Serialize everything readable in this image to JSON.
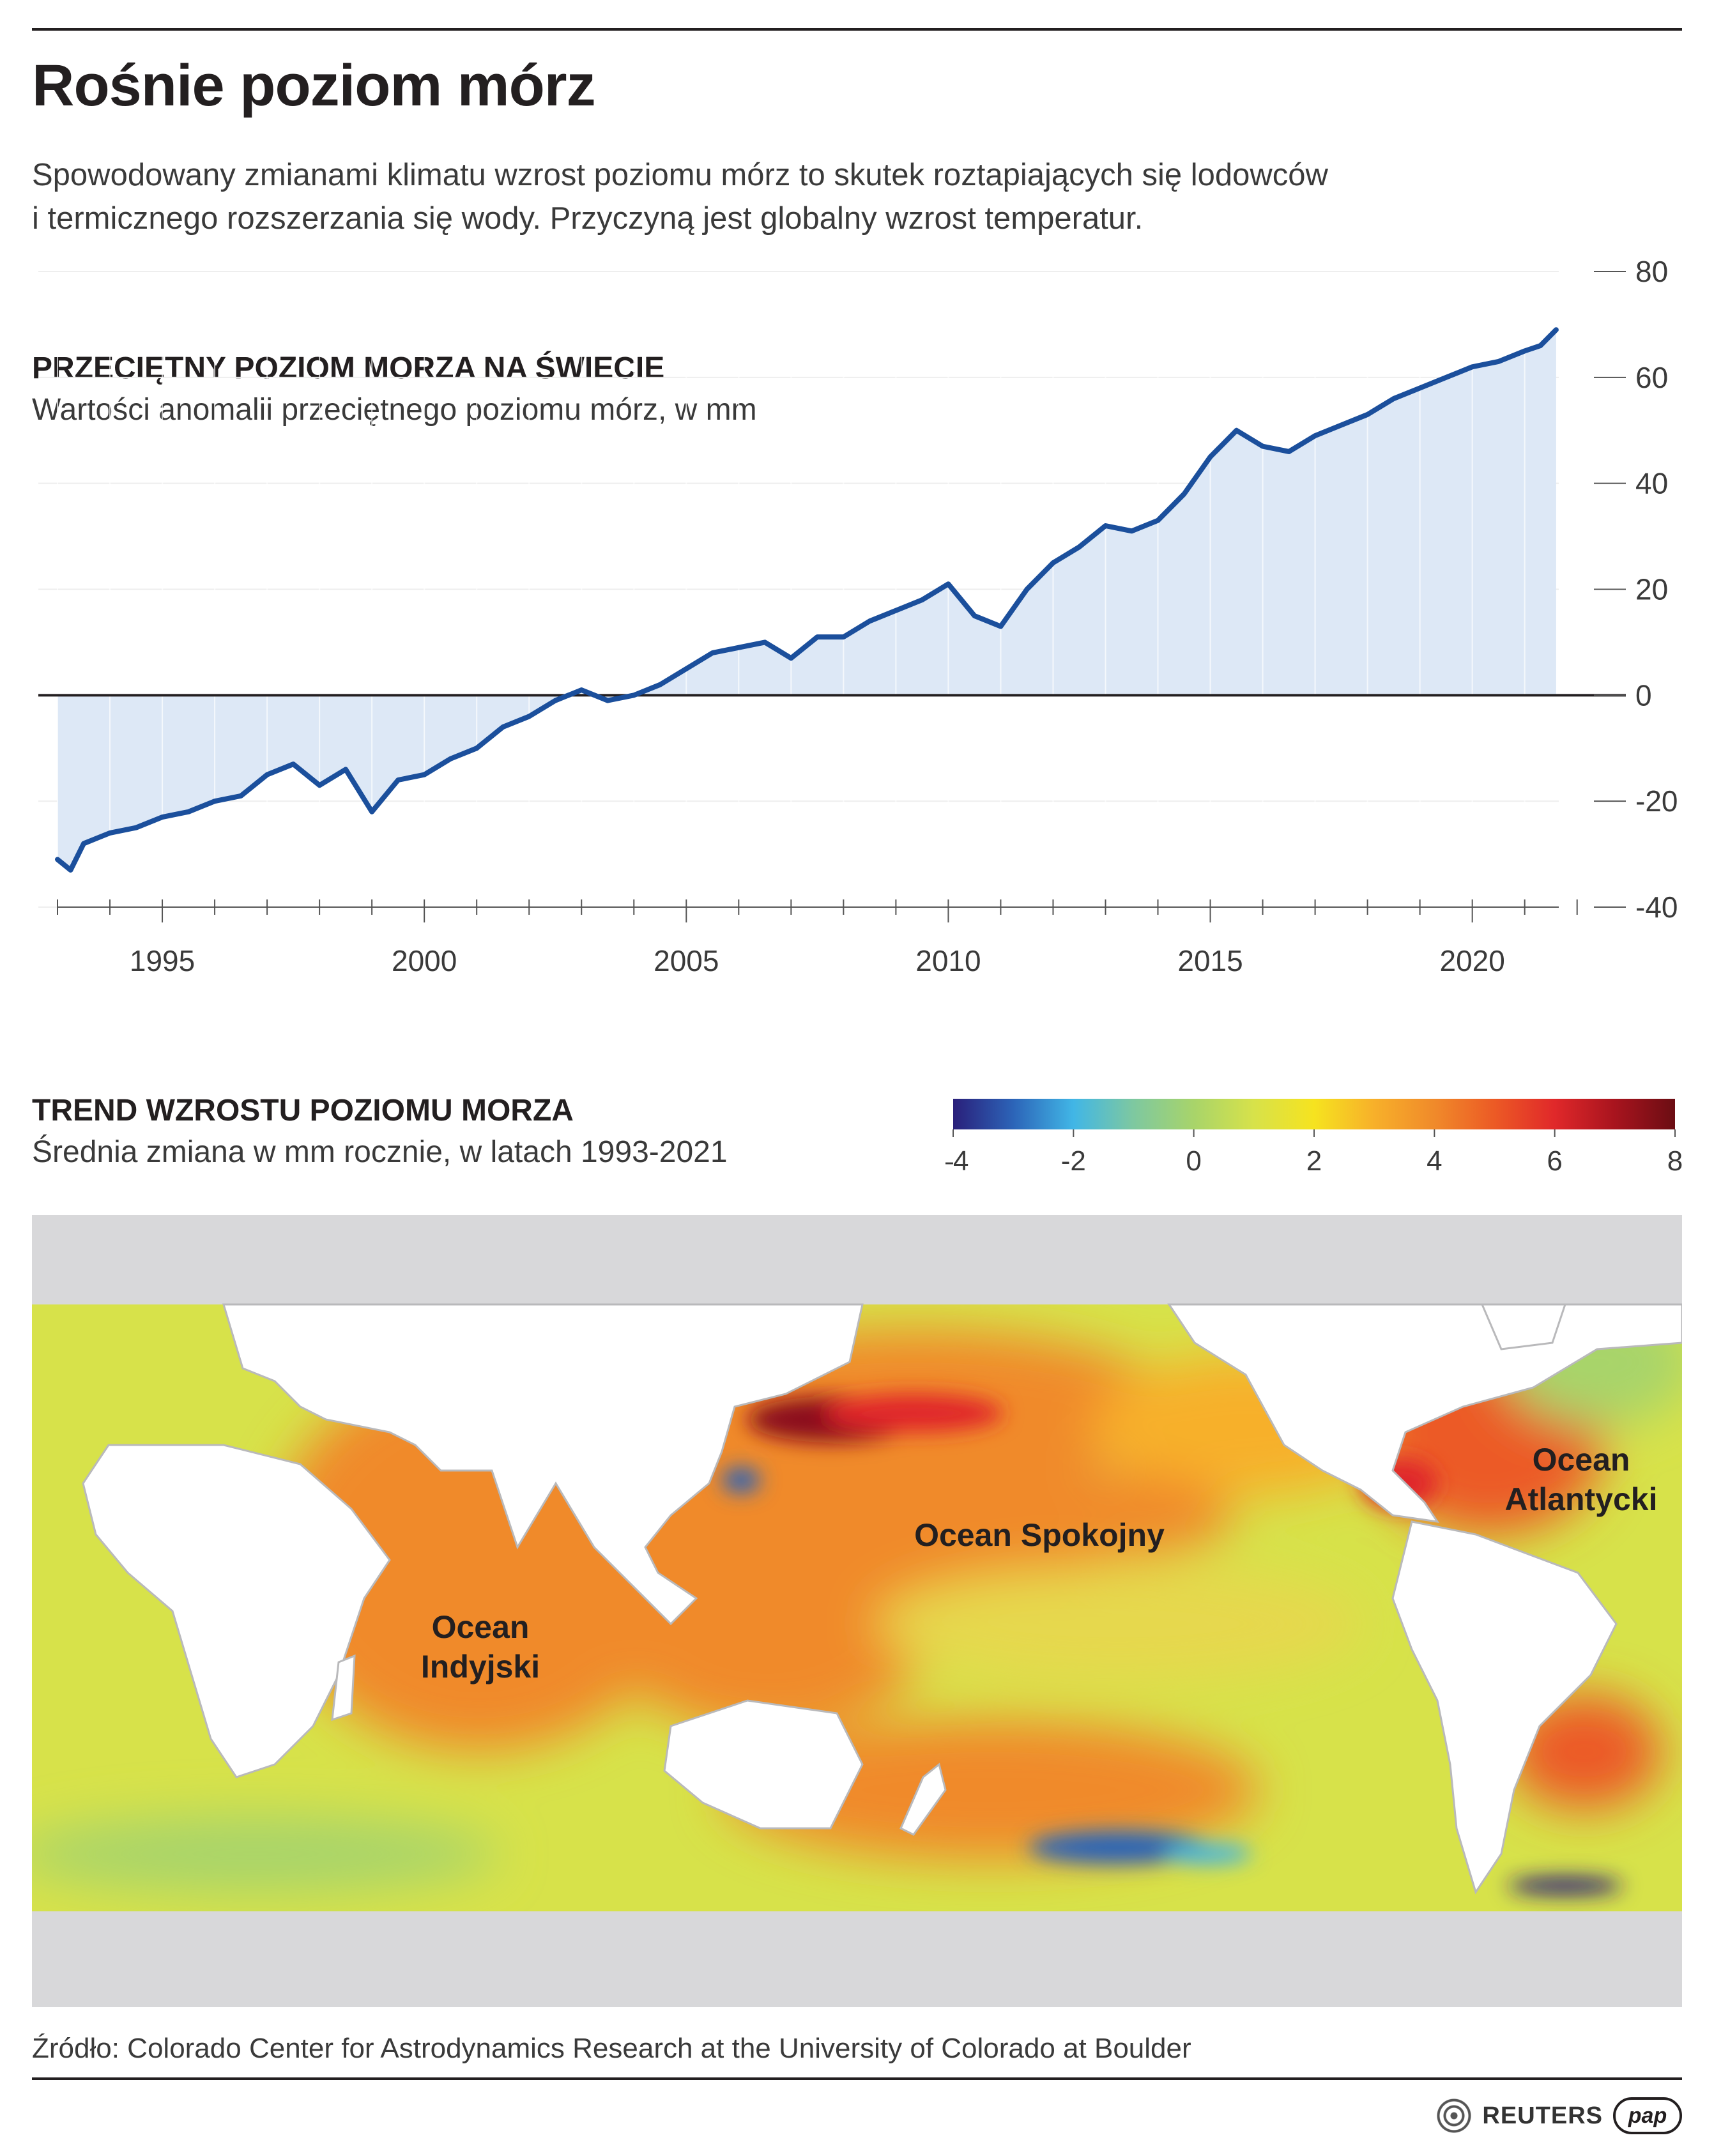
{
  "title": "Rośnie poziom mórz",
  "subtitle": "Spowodowany zmianami klimatu wzrost poziomu mórz to skutek roztapiających się lodowców i termicznego rozszerzania się wody. Przyczyną jest globalny wzrost temperatur.",
  "chart_data": [
    {
      "type": "area",
      "title": "PRZECIĘTNY POZIOM MORZA NA ŚWIECIE",
      "subtitle": "Wartości anomalii przeciętnego poziomu mórz, w mm",
      "xlabel": "",
      "ylabel": "",
      "xlim": [
        1993.0,
        2021.65
      ],
      "ylim": [
        -40,
        80
      ],
      "x_ticks": [
        1995,
        2000,
        2005,
        2010,
        2015,
        2020
      ],
      "y_ticks": [
        -40,
        -20,
        0,
        20,
        40,
        60,
        80
      ],
      "grid": true,
      "baseline": 0,
      "line_color": "#1b4f9c",
      "fill_color": "#dde8f6",
      "series": [
        {
          "x": [
            1993.0,
            1993.25,
            1993.5,
            1993.75,
            1994.0,
            1994.5,
            1995.0,
            1995.5,
            1996.0,
            1996.5,
            1997.0,
            1997.5,
            1998.0,
            1998.5,
            1999.0,
            1999.5,
            2000.0,
            2000.5,
            2001.0,
            2001.5,
            2002.0,
            2002.5,
            2003.0,
            2003.5,
            2004.0,
            2004.5,
            2005.0,
            2005.5,
            2006.0,
            2006.5,
            2007.0,
            2007.5,
            2008.0,
            2008.5,
            2009.0,
            2009.5,
            2010.0,
            2010.5,
            2011.0,
            2011.5,
            2012.0,
            2012.5,
            2013.0,
            2013.5,
            2014.0,
            2014.5,
            2015.0,
            2015.5,
            2016.0,
            2016.5,
            2017.0,
            2017.5,
            2018.0,
            2018.5,
            2019.0,
            2019.5,
            2020.0,
            2020.5,
            2021.0,
            2021.3,
            2021.6
          ],
          "values": [
            -31,
            -33,
            -28,
            -27,
            -26,
            -25,
            -23,
            -22,
            -20,
            -19,
            -15,
            -13,
            -17,
            -14,
            -22,
            -16,
            -15,
            -12,
            -10,
            -6,
            -4,
            -1,
            1,
            -1,
            0,
            2,
            5,
            8,
            9,
            10,
            7,
            11,
            11,
            14,
            16,
            18,
            21,
            15,
            13,
            20,
            25,
            28,
            32,
            31,
            33,
            38,
            45,
            50,
            47,
            46,
            49,
            51,
            53,
            56,
            58,
            60,
            62,
            63,
            65,
            66,
            69
          ]
        }
      ]
    },
    {
      "type": "heatmap",
      "title": "TREND WZROSTU POZIOMU MORZA",
      "subtitle": "Średnia zmiana w mm rocznie, w latach 1993-2021",
      "colorbar_range": [
        -4,
        8
      ],
      "colorbar_ticks": [
        "–4",
        "-2",
        "0",
        "2",
        "4",
        "6",
        "8"
      ],
      "colorbar_stops": [
        {
          "value": -4,
          "color": "#2a1f7a"
        },
        {
          "value": -3,
          "color": "#2c64b8"
        },
        {
          "value": -2,
          "color": "#41b6e6"
        },
        {
          "value": -1,
          "color": "#7ec8a0"
        },
        {
          "value": 0,
          "color": "#a8d46a"
        },
        {
          "value": 1,
          "color": "#d7e24a"
        },
        {
          "value": 2,
          "color": "#f6e31f"
        },
        {
          "value": 3,
          "color": "#f7b02a"
        },
        {
          "value": 4,
          "color": "#f08a2a"
        },
        {
          "value": 5,
          "color": "#ec5a25"
        },
        {
          "value": 6,
          "color": "#e0282a"
        },
        {
          "value": 7,
          "color": "#a8141e"
        },
        {
          "value": 8,
          "color": "#6b0d13"
        }
      ],
      "ocean_labels": [
        {
          "id": "indian",
          "lines": [
            "Ocean",
            "Indyjski"
          ]
        },
        {
          "id": "pacific",
          "lines": [
            "Ocean Spokojny"
          ]
        },
        {
          "id": "atlantic",
          "lines": [
            "Ocean",
            "Atlantycki"
          ]
        }
      ]
    }
  ],
  "source": "Źródło: Colorado Center for Astrodynamics Research at the University of Colorado at Boulder",
  "logos": {
    "reuters": "REUTERS",
    "pap": "pap"
  }
}
